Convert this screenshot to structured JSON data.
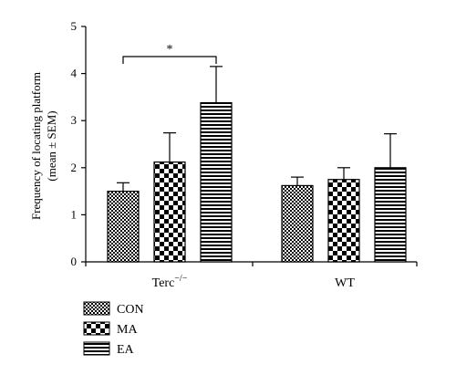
{
  "chart_data": {
    "type": "bar",
    "ylabel_line1": "Frequency of locating platform",
    "ylabel_line2": "(mean ± SEM)",
    "ylim": [
      0,
      5
    ],
    "yticks": [
      "0",
      "1",
      "2",
      "3",
      "4",
      "5"
    ],
    "grid": false,
    "legend_position": "bottom-left",
    "groups": [
      {
        "label_main": "Terc",
        "label_sup": "−/−",
        "values": [
          1.5,
          2.12,
          3.38
        ],
        "errors": [
          0.18,
          0.62,
          0.77
        ]
      },
      {
        "label_main": "WT",
        "label_sup": "",
        "values": [
          1.62,
          1.75,
          2.0
        ],
        "errors": [
          0.18,
          0.25,
          0.72
        ]
      }
    ],
    "series": [
      {
        "name": "CON",
        "pattern": "fine-checker",
        "values": [
          1.5,
          1.62
        ]
      },
      {
        "name": "MA",
        "pattern": "coarse-checker",
        "values": [
          2.12,
          1.75
        ]
      },
      {
        "name": "EA",
        "pattern": "horizontal-stripes",
        "values": [
          3.38,
          2.0
        ]
      }
    ],
    "annotations": [
      {
        "text": "*",
        "between_group": 0,
        "from_series": 0,
        "to_series": 2
      }
    ]
  }
}
